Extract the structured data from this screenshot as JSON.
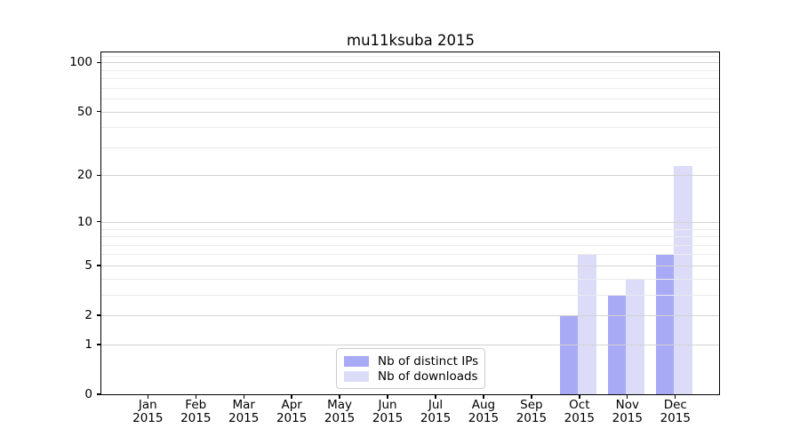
{
  "title": "mu11ksuba 2015",
  "colors": {
    "distinct_ips": "#a9aaf5",
    "downloads": "#dcdcf8",
    "grid_major": "#d2d2d2",
    "grid_minor": "#ebebeb",
    "axis": "#000000",
    "legend_border": "#cccccc",
    "text": "#000000"
  },
  "legend": {
    "items": [
      {
        "label": "Nb of distinct IPs",
        "color_key": "distinct_ips"
      },
      {
        "label": "Nb of downloads",
        "color_key": "downloads"
      }
    ]
  },
  "chart_data": {
    "type": "bar",
    "title": "mu11ksuba 2015",
    "categories": [
      "Jan 2015",
      "Feb 2015",
      "Mar 2015",
      "Apr 2015",
      "May 2015",
      "Jun 2015",
      "Jul 2015",
      "Aug 2015",
      "Sep 2015",
      "Oct 2015",
      "Nov 2015",
      "Dec 2015"
    ],
    "months": [
      "Jan",
      "Feb",
      "Mar",
      "Apr",
      "May",
      "Jun",
      "Jul",
      "Aug",
      "Sep",
      "Oct",
      "Nov",
      "Dec"
    ],
    "year": "2015",
    "series": [
      {
        "name": "Nb of distinct IPs",
        "color_key": "distinct_ips",
        "values": [
          0,
          0,
          0,
          0,
          0,
          0,
          0,
          0,
          0,
          2,
          3,
          6
        ]
      },
      {
        "name": "Nb of downloads",
        "color_key": "downloads",
        "values": [
          0,
          0,
          0,
          0,
          0,
          0,
          0,
          0,
          0,
          6,
          4,
          23
        ]
      }
    ],
    "y_scale": "log1p",
    "ylim": [
      0,
      115
    ],
    "y_major_ticks": [
      0,
      1,
      2,
      5,
      10,
      20,
      50,
      100
    ],
    "y_tick_labels": [
      "0",
      "1",
      "2",
      "5",
      "10",
      "20",
      "50",
      "100"
    ],
    "y_minor_ticks": [
      3,
      4,
      6,
      7,
      8,
      9,
      30,
      40,
      60,
      70,
      80,
      90,
      110
    ],
    "xlabel": "",
    "ylabel": "",
    "grid": true,
    "legend_position": "lower center"
  }
}
